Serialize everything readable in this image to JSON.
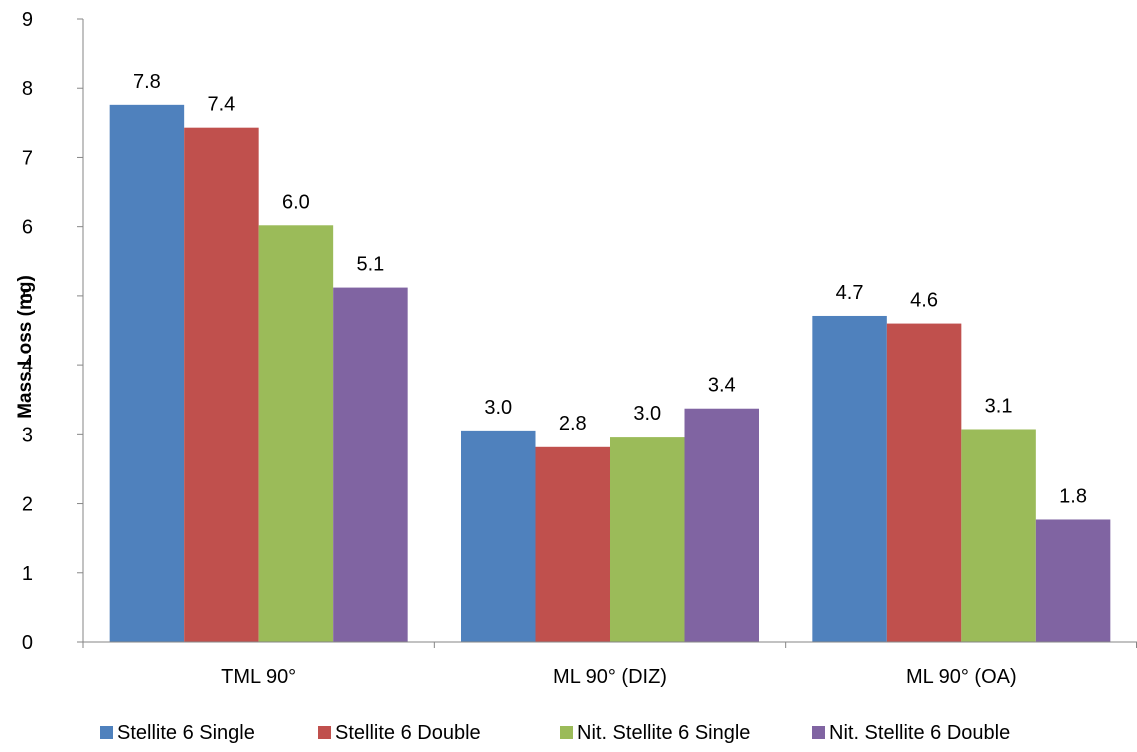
{
  "chart_data": {
    "type": "bar",
    "title": "",
    "xlabel": "",
    "ylabel": "Mass Loss (mg)",
    "ylim": [
      0,
      9
    ],
    "yticks": [
      "0",
      "1",
      "2",
      "3",
      "4",
      "5",
      "6",
      "7",
      "8",
      "9"
    ],
    "grid": false,
    "legend_position": "bottom",
    "categories": [
      "TML 90°",
      "ML 90° (DIZ)",
      "ML 90° (OA)"
    ],
    "series": [
      {
        "name": "Stellite 6 Single",
        "color": "#4F81BD",
        "values": [
          7.76,
          3.05,
          4.71
        ],
        "labels": [
          "7.8",
          "3.0",
          "4.7"
        ]
      },
      {
        "name": "Stellite 6 Double",
        "color": "#C0504D",
        "values": [
          7.43,
          2.82,
          4.6
        ],
        "labels": [
          "7.4",
          "2.8",
          "4.6"
        ]
      },
      {
        "name": "Nit. Stellite 6 Single",
        "color": "#9BBB59",
        "values": [
          6.02,
          2.96,
          3.07
        ],
        "labels": [
          "6.0",
          "3.0",
          "3.1"
        ]
      },
      {
        "name": "Nit. Stellite 6 Double",
        "color": "#8064A2",
        "values": [
          5.12,
          3.37,
          1.77
        ],
        "labels": [
          "5.1",
          "3.4",
          "1.8"
        ]
      }
    ]
  }
}
